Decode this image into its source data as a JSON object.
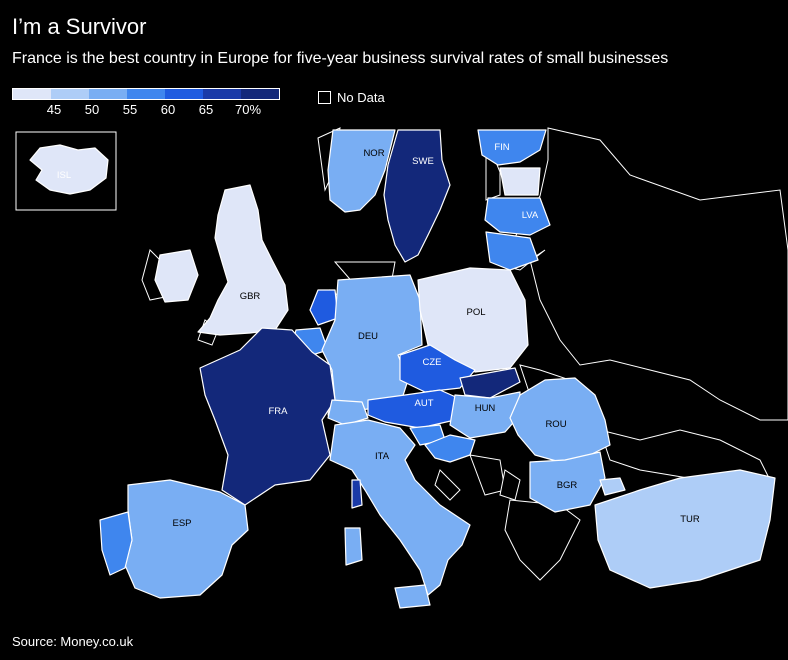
{
  "title": "I’m a Survivor",
  "subtitle": "France is the best country in Europe for five-year business survival rates of small businesses",
  "legend": {
    "ticks": [
      "45",
      "50",
      "55",
      "60",
      "65",
      "70%"
    ],
    "colors": [
      "#dfe6f8",
      "#aecdf7",
      "#79aef3",
      "#3f86ee",
      "#1f5be0",
      "#1a3aa8",
      "#13287a"
    ],
    "no_data_label": "No Data"
  },
  "source": "Source: Money.co.uk",
  "countries": [
    {
      "code": "ISL",
      "level": 0
    },
    {
      "code": "NOR",
      "level": 2
    },
    {
      "code": "SWE",
      "level": 6
    },
    {
      "code": "FIN",
      "level": 3
    },
    {
      "code": "LVA",
      "level": 3
    },
    {
      "code": "GBR",
      "level": 0
    },
    {
      "code": "DEU",
      "level": 2
    },
    {
      "code": "POL",
      "level": 0
    },
    {
      "code": "CZE",
      "level": 4
    },
    {
      "code": "FRA",
      "level": 6
    },
    {
      "code": "AUT",
      "level": 4
    },
    {
      "code": "HUN",
      "level": 2
    },
    {
      "code": "ROU",
      "level": 2
    },
    {
      "code": "ITA",
      "level": 2
    },
    {
      "code": "BGR",
      "level": 2
    },
    {
      "code": "ESP",
      "level": 2
    },
    {
      "code": "TUR",
      "level": 1
    }
  ]
}
